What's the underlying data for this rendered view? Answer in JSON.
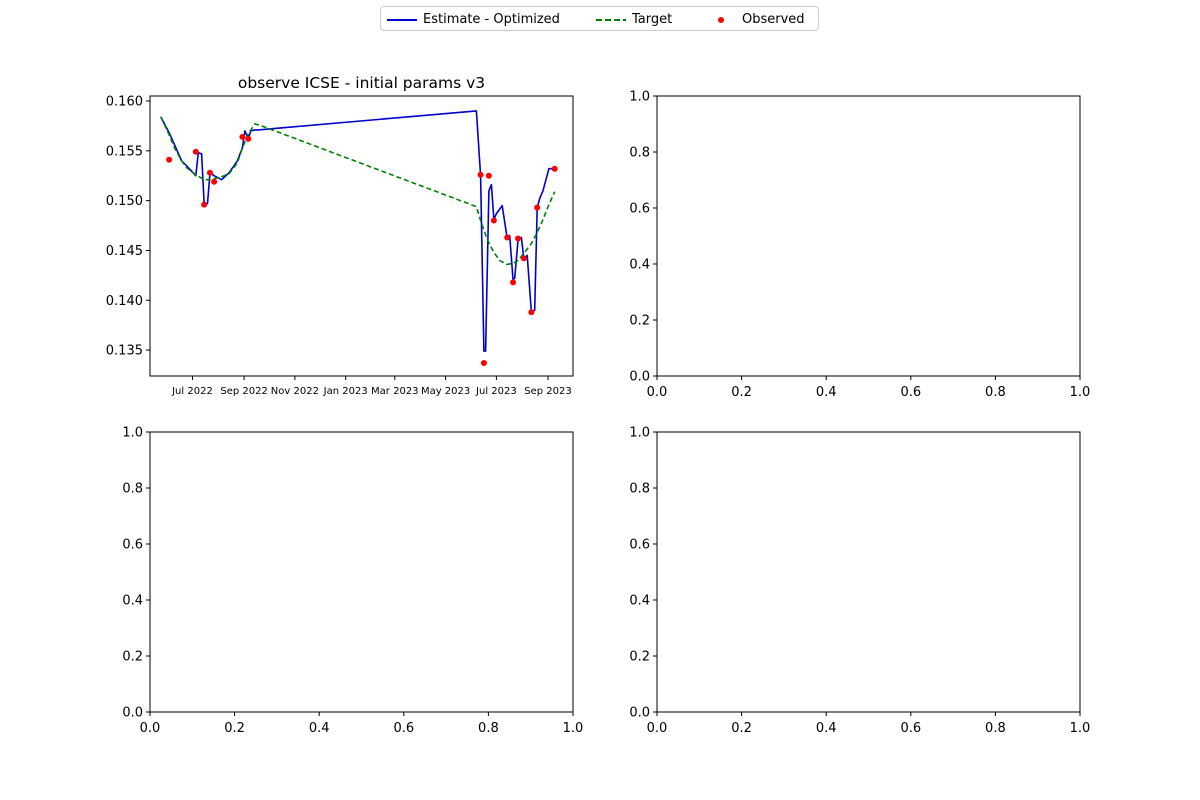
{
  "legend": {
    "items": [
      {
        "label": "Estimate - Optimized",
        "color": "#0000cc",
        "style": "solid"
      },
      {
        "label": "Target",
        "color": "#008000",
        "style": "dashed"
      },
      {
        "label": "Observed",
        "color": "#ff0000",
        "style": "marker"
      }
    ]
  },
  "chart_data": [
    {
      "type": "line",
      "title": "observe ICSE - initial params v3",
      "xlabel": "",
      "ylabel": "",
      "x_axis": "date",
      "xlim": [
        "2022-05-11",
        "2023-10-01"
      ],
      "ylim": [
        0.1324,
        0.1605
      ],
      "xticks": [
        {
          "date": "2022-07-01",
          "label": "Jul 2022"
        },
        {
          "date": "2022-09-01",
          "label": "Sep 2022"
        },
        {
          "date": "2022-11-01",
          "label": "Nov 2022"
        },
        {
          "date": "2023-01-01",
          "label": "Jan 2023"
        },
        {
          "date": "2023-03-01",
          "label": "Mar 2023"
        },
        {
          "date": "2023-05-01",
          "label": "May 2023"
        },
        {
          "date": "2023-07-01",
          "label": "Jul 2023"
        },
        {
          "date": "2023-09-01",
          "label": "Sep 2023"
        }
      ],
      "yticks": [
        "0.135",
        "0.140",
        "0.145",
        "0.150",
        "0.155",
        "0.160"
      ],
      "series": [
        {
          "name": "Estimate - Optimized",
          "color": "#0000cc",
          "style": "solid",
          "x": [
            "2022-05-24",
            "2022-06-03",
            "2022-06-10",
            "2022-06-18",
            "2022-06-24",
            "2022-07-05",
            "2022-07-08",
            "2022-07-12",
            "2022-07-15",
            "2022-07-19",
            "2022-07-22",
            "2022-07-27",
            "2022-08-05",
            "2022-08-14",
            "2022-08-24",
            "2022-08-30",
            "2022-09-02",
            "2022-09-06",
            "2022-09-09",
            "2022-09-14",
            "2022-09-18",
            "2023-06-07",
            "2023-06-12",
            "2023-06-16",
            "2023-06-18",
            "2023-06-22",
            "2023-06-25",
            "2023-06-28",
            "2023-07-01",
            "2023-07-08",
            "2023-07-14",
            "2023-07-17",
            "2023-07-21",
            "2023-07-23",
            "2023-07-27",
            "2023-07-31",
            "2023-08-03",
            "2023-08-07",
            "2023-08-12",
            "2023-08-16",
            "2023-08-19",
            "2023-08-22",
            "2023-08-26",
            "2023-09-02",
            "2023-09-09"
          ],
          "y": [
            0.1584,
            0.1568,
            0.1555,
            0.154,
            0.1535,
            0.1525,
            0.1548,
            0.1547,
            0.1498,
            0.1497,
            0.1528,
            0.1525,
            0.1521,
            0.1528,
            0.154,
            0.1553,
            0.157,
            0.1562,
            0.157,
            0.1571,
            0.1571,
            0.159,
            0.1525,
            0.1349,
            0.1349,
            0.151,
            0.1516,
            0.1481,
            0.1487,
            0.1495,
            0.1462,
            0.1465,
            0.1421,
            0.1422,
            0.146,
            0.1463,
            0.1441,
            0.1445,
            0.1388,
            0.139,
            0.1493,
            0.1502,
            0.151,
            0.1532,
            0.1532
          ]
        },
        {
          "name": "Target",
          "color": "#008000",
          "style": "dashed",
          "x": [
            "2022-05-24",
            "2022-06-03",
            "2022-06-10",
            "2022-06-18",
            "2022-06-24",
            "2022-07-05",
            "2022-07-15",
            "2022-07-22",
            "2022-07-27",
            "2022-08-05",
            "2022-08-14",
            "2022-08-24",
            "2022-08-30",
            "2022-09-06",
            "2022-09-14",
            "2022-09-22",
            "2023-06-07",
            "2023-06-12",
            "2023-06-20",
            "2023-06-28",
            "2023-07-05",
            "2023-07-13",
            "2023-07-21",
            "2023-07-27",
            "2023-08-03",
            "2023-08-12",
            "2023-08-19",
            "2023-08-26",
            "2023-09-02",
            "2023-09-09"
          ],
          "y": [
            0.1584,
            0.1566,
            0.1552,
            0.154,
            0.1533,
            0.1526,
            0.1521,
            0.1521,
            0.1522,
            0.1524,
            0.1527,
            0.1538,
            0.1553,
            0.1567,
            0.1577,
            0.1575,
            0.1494,
            0.148,
            0.1461,
            0.1448,
            0.144,
            0.1436,
            0.1437,
            0.144,
            0.1447,
            0.1457,
            0.1468,
            0.1481,
            0.1496,
            0.1509
          ]
        }
      ],
      "observed": {
        "name": "Observed",
        "color": "#ff0000",
        "x": [
          "2022-06-03",
          "2022-07-05",
          "2022-07-15",
          "2022-07-22",
          "2022-07-27",
          "2022-08-30",
          "2022-09-06",
          "2023-06-12",
          "2023-06-16",
          "2023-06-22",
          "2023-06-28",
          "2023-07-14",
          "2023-07-21",
          "2023-07-27",
          "2023-08-03",
          "2023-08-12",
          "2023-08-19",
          "2023-09-09"
        ],
        "y": [
          0.1541,
          0.1549,
          0.1496,
          0.1528,
          0.1519,
          0.1564,
          0.1562,
          0.1526,
          0.1337,
          0.1525,
          0.148,
          0.1463,
          0.1418,
          0.1462,
          0.1442,
          0.1388,
          0.1493,
          0.1532
        ]
      }
    },
    {
      "type": "line",
      "title": "",
      "xlim": [
        0,
        1
      ],
      "ylim": [
        0,
        1
      ],
      "xticks": [
        "0.0",
        "0.2",
        "0.4",
        "0.6",
        "0.8",
        "1.0"
      ],
      "yticks": [
        "0.0",
        "0.2",
        "0.4",
        "0.6",
        "0.8",
        "1.0"
      ],
      "series": []
    },
    {
      "type": "line",
      "title": "",
      "xlim": [
        0,
        1
      ],
      "ylim": [
        0,
        1
      ],
      "xticks": [
        "0.0",
        "0.2",
        "0.4",
        "0.6",
        "0.8",
        "1.0"
      ],
      "yticks": [
        "0.0",
        "0.2",
        "0.4",
        "0.6",
        "0.8",
        "1.0"
      ],
      "series": []
    },
    {
      "type": "line",
      "title": "",
      "xlim": [
        0,
        1
      ],
      "ylim": [
        0,
        1
      ],
      "xticks": [
        "0.0",
        "0.2",
        "0.4",
        "0.6",
        "0.8",
        "1.0"
      ],
      "yticks": [
        "0.0",
        "0.2",
        "0.4",
        "0.6",
        "0.8",
        "1.0"
      ],
      "series": []
    }
  ]
}
